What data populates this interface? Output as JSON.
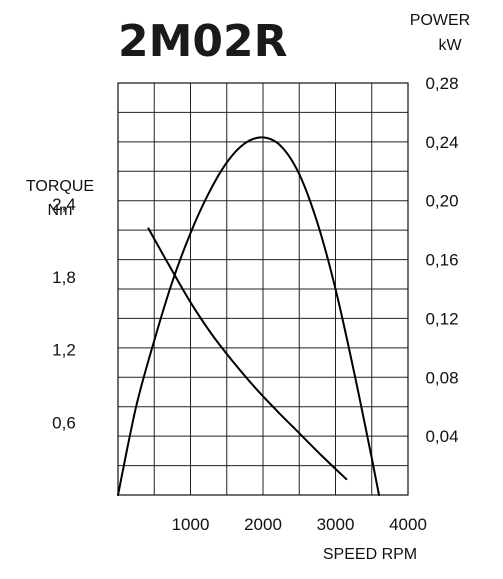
{
  "chart_data": {
    "type": "line",
    "title": "2M02R",
    "xlabel": "SPEED RPM",
    "left_axis": {
      "label_line1": "TORQUE",
      "label_line2": "Nm",
      "ylim": [
        0,
        3.4
      ],
      "ticks": [
        {
          "value": 0.6,
          "label": "0,6"
        },
        {
          "value": 1.2,
          "label": "1,2"
        },
        {
          "value": 1.8,
          "label": "1,8"
        },
        {
          "value": 2.4,
          "label": "2,4"
        }
      ]
    },
    "right_axis": {
      "label_line1": "POWER",
      "label_line2": "kW",
      "ylim": [
        0,
        0.28
      ],
      "ticks": [
        {
          "value": 0.04,
          "label": "0,04"
        },
        {
          "value": 0.08,
          "label": "0,08"
        },
        {
          "value": 0.12,
          "label": "0,12"
        },
        {
          "value": 0.16,
          "label": "0,16"
        },
        {
          "value": 0.2,
          "label": "0,20"
        },
        {
          "value": 0.24,
          "label": "0,24"
        },
        {
          "value": 0.28,
          "label": "0,28"
        }
      ]
    },
    "x_axis": {
      "xlim": [
        0,
        4000
      ],
      "ticks": [
        {
          "value": 1000,
          "label": "1000"
        },
        {
          "value": 2000,
          "label": "2000"
        },
        {
          "value": 3000,
          "label": "3000"
        },
        {
          "value": 4000,
          "label": "4000"
        }
      ]
    },
    "grid": true,
    "series": [
      {
        "axis": "right",
        "x": [
          0,
          250,
          500,
          750,
          1000,
          1250,
          1500,
          1750,
          2000,
          2250,
          2500,
          2750,
          3000,
          3250,
          3500,
          3600
        ],
        "y": [
          0.0,
          0.06,
          0.105,
          0.145,
          0.178,
          0.205,
          0.226,
          0.239,
          0.243,
          0.237,
          0.218,
          0.185,
          0.14,
          0.085,
          0.025,
          0.0
        ]
      },
      {
        "axis": "left",
        "x": [
          420,
          700,
          1000,
          1300,
          1600,
          1900,
          2200,
          2500,
          2800,
          3150
        ],
        "y": [
          2.2,
          1.9,
          1.59,
          1.32,
          1.09,
          0.88,
          0.69,
          0.51,
          0.33,
          0.13
        ]
      }
    ]
  }
}
